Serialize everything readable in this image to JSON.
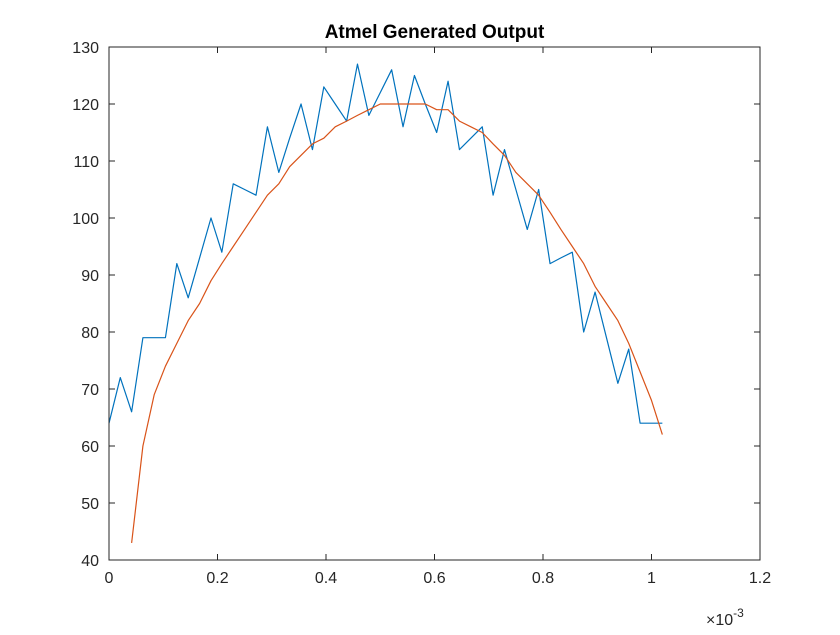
{
  "chart_data": {
    "type": "line",
    "title": "Atmel Generated Output",
    "xlabel": "",
    "ylabel": "",
    "xlim": [
      0,
      0.0012
    ],
    "ylim": [
      40,
      130
    ],
    "x_ticks": [
      0,
      0.0002,
      0.0004,
      0.0006,
      0.0008,
      0.001,
      0.0012
    ],
    "x_tick_labels": [
      "0",
      "0.2",
      "0.4",
      "0.6",
      "0.8",
      "1",
      "1.2"
    ],
    "y_ticks": [
      40,
      50,
      60,
      70,
      80,
      90,
      100,
      110,
      120,
      130
    ],
    "y_tick_labels": [
      "40",
      "50",
      "60",
      "70",
      "80",
      "90",
      "100",
      "110",
      "120",
      "130"
    ],
    "x_exponent": {
      "prefix": "×10",
      "power": "-3"
    },
    "grid": false,
    "series": [
      {
        "color": "#0072BD",
        "x": [
          0,
          2.08e-05,
          4.17e-05,
          6.25e-05,
          8.33e-05,
          0.000104,
          0.000125,
          0.000146,
          0.000167,
          0.000188,
          0.000208,
          0.000229,
          0.00025,
          0.000271,
          0.000292,
          0.000313,
          0.000333,
          0.000354,
          0.000375,
          0.000396,
          0.000417,
          0.000438,
          0.000458,
          0.000479,
          0.0005,
          0.000521,
          0.000542,
          0.000563,
          0.000583,
          0.000604,
          0.000625,
          0.000646,
          0.000667,
          0.000688,
          0.000708,
          0.000729,
          0.00075,
          0.000771,
          0.000792,
          0.000813,
          0.000833,
          0.000854,
          0.000875,
          0.000896,
          0.000917,
          0.000938,
          0.000958,
          0.000979,
          0.001,
          0.00102
        ],
        "y": [
          64,
          72,
          66,
          79,
          79,
          79,
          92,
          86,
          93,
          100,
          94,
          106,
          105,
          104,
          116,
          108,
          114,
          120,
          112,
          123,
          120,
          117,
          127,
          118,
          122,
          126,
          116,
          125,
          120,
          115,
          124,
          112,
          114,
          116,
          104,
          112,
          105,
          98,
          105,
          92,
          93,
          94,
          80,
          87,
          79,
          71,
          77,
          64,
          64,
          64
        ]
      },
      {
        "color": "#D95319",
        "x": [
          4.17e-05,
          6.25e-05,
          8.33e-05,
          0.000104,
          0.000125,
          0.000146,
          0.000167,
          0.000188,
          0.000208,
          0.000229,
          0.00025,
          0.000271,
          0.000292,
          0.000313,
          0.000333,
          0.000354,
          0.000375,
          0.000396,
          0.000417,
          0.000438,
          0.000458,
          0.000479,
          0.0005,
          0.000521,
          0.000542,
          0.000563,
          0.000583,
          0.000604,
          0.000625,
          0.000646,
          0.000667,
          0.000688,
          0.000708,
          0.000729,
          0.00075,
          0.000771,
          0.000792,
          0.000813,
          0.000833,
          0.000854,
          0.000875,
          0.000896,
          0.000917,
          0.000938,
          0.000958,
          0.000979,
          0.001,
          0.00102
        ],
        "y": [
          43,
          60,
          69,
          74,
          78,
          82,
          85,
          89,
          92,
          95,
          98,
          101,
          104,
          106,
          109,
          111,
          113,
          114,
          116,
          117,
          118,
          119,
          120,
          120,
          120,
          120,
          120,
          119,
          119,
          117,
          116,
          115,
          113,
          111,
          108,
          106,
          104,
          101,
          98,
          95,
          92,
          88,
          85,
          82,
          78,
          73,
          68,
          62
        ]
      }
    ]
  }
}
